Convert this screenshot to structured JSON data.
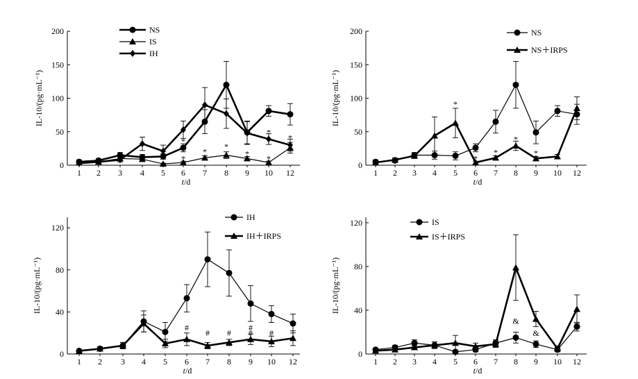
{
  "chart_data": [
    {
      "type": "line",
      "categories": [
        "1",
        "2",
        "3",
        "4",
        "5",
        "6",
        "7",
        "8",
        "9",
        "10",
        "12"
      ],
      "xlabel": "t/d",
      "ylabel": "IL-10/(pg·mL⁻¹)",
      "ylim": [
        0,
        200
      ],
      "yticks": [
        "0",
        "50",
        "100",
        "150",
        "200"
      ],
      "legend_position": "top-left",
      "series": [
        {
          "name": "NS",
          "marker": "circle",
          "line": "thick",
          "values": [
            5,
            7,
            15,
            12,
            13,
            26,
            65,
            120,
            49,
            81,
            76
          ],
          "errors": [
            3,
            3,
            4,
            4,
            4,
            6,
            18,
            35,
            17,
            8,
            16
          ]
        },
        {
          "name": "IS",
          "marker": "triangle",
          "line": "thin",
          "values": [
            4,
            5,
            10,
            9,
            2,
            4,
            11,
            15,
            10,
            4,
            26
          ],
          "errors": [
            2,
            2,
            3,
            3,
            1,
            2,
            3,
            5,
            3,
            2,
            8
          ]
        },
        {
          "name": "IH",
          "marker": "diamond",
          "line": "thick",
          "values": [
            3,
            5,
            8,
            32,
            21,
            53,
            90,
            77,
            48,
            39,
            30
          ],
          "errors": [
            2,
            2,
            3,
            10,
            9,
            13,
            26,
            22,
            17,
            8,
            9
          ]
        }
      ],
      "annotations": [
        {
          "text": "*",
          "x": "6",
          "y": 36
        },
        {
          "text": "*",
          "x": "6",
          "y": 10
        },
        {
          "text": "*",
          "x": "7",
          "y": 20
        },
        {
          "text": "*",
          "x": "8",
          "y": 28
        },
        {
          "text": "*",
          "x": "9",
          "y": 17
        },
        {
          "text": "*",
          "x": "10",
          "y": 49
        },
        {
          "text": "*",
          "x": "10",
          "y": 10
        },
        {
          "text": "*",
          "x": "12",
          "y": 41
        }
      ]
    },
    {
      "type": "line",
      "categories": [
        "1",
        "2",
        "3",
        "4",
        "5",
        "6",
        "7",
        "8",
        "9",
        "10",
        "12"
      ],
      "xlabel": "t/d",
      "ylabel": "IL-10/(pg·mL⁻¹)",
      "ylim": [
        0,
        200
      ],
      "yticks": [
        "0",
        "50",
        "100",
        "150",
        "200"
      ],
      "legend_position": "top-right",
      "series": [
        {
          "name": "NS",
          "marker": "circle",
          "line": "thin",
          "values": [
            5,
            7,
            15,
            15,
            14,
            26,
            65,
            120,
            49,
            81,
            76
          ],
          "errors": [
            3,
            3,
            4,
            6,
            6,
            6,
            17,
            35,
            17,
            8,
            15
          ]
        },
        {
          "name": "NS＋IRPS",
          "marker": "triangle",
          "line": "thick",
          "values": [
            4,
            8,
            14,
            44,
            63,
            4,
            11,
            29,
            10,
            13,
            85
          ],
          "errors": [
            2,
            3,
            4,
            28,
            22,
            2,
            3,
            7,
            3,
            3,
            17
          ]
        }
      ],
      "annotations": [
        {
          "text": "*",
          "x": "5",
          "y": 91
        },
        {
          "text": "*",
          "x": "6",
          "y": 10
        },
        {
          "text": "*",
          "x": "7",
          "y": 19
        },
        {
          "text": "*",
          "x": "8",
          "y": 39
        },
        {
          "text": "*",
          "x": "9",
          "y": 18
        },
        {
          "text": "*",
          "x": "10",
          "y": 10
        }
      ]
    },
    {
      "type": "line",
      "categories": [
        "1",
        "2",
        "3",
        "4",
        "5",
        "6",
        "7",
        "8",
        "9",
        "10",
        "12"
      ],
      "xlabel": "t/d",
      "ylabel": "IL-10/(pg·mL⁻¹)",
      "ylim": [
        0,
        130
      ],
      "yticks": [
        "0",
        "40",
        "80",
        "120"
      ],
      "legend_position": "top-right",
      "series": [
        {
          "name": "IH",
          "marker": "circle",
          "line": "thin",
          "values": [
            3,
            5,
            8,
            31,
            21,
            53,
            90,
            77,
            48,
            38,
            29
          ],
          "errors": [
            1,
            2,
            3,
            10,
            9,
            13,
            26,
            22,
            17,
            8,
            9
          ]
        },
        {
          "name": "IH＋IRPS",
          "marker": "triangle",
          "line": "thick",
          "values": [
            3,
            5,
            8,
            29,
            10,
            14,
            8,
            11,
            14,
            12,
            15
          ],
          "errors": [
            1,
            2,
            3,
            8,
            4,
            6,
            3,
            3,
            5,
            5,
            7
          ]
        }
      ],
      "annotations": [
        {
          "text": "#",
          "x": "6",
          "y": 25
        },
        {
          "text": "#",
          "x": "7",
          "y": 20
        },
        {
          "text": "#",
          "x": "8",
          "y": 20
        },
        {
          "text": "#",
          "x": "9",
          "y": 25
        },
        {
          "text": "#",
          "x": "9",
          "y": 20
        },
        {
          "text": "#",
          "x": "10",
          "y": 20
        }
      ]
    },
    {
      "type": "line",
      "categories": [
        "1",
        "2",
        "3",
        "4",
        "5",
        "6",
        "7",
        "8",
        "9",
        "10",
        "12"
      ],
      "xlabel": "t/d",
      "ylabel": "IL-10/(pg·mL⁻¹)",
      "ylim": [
        0,
        125
      ],
      "yticks": [
        "0",
        "40",
        "80",
        "120"
      ],
      "legend_position": "top-left",
      "series": [
        {
          "name": "IS",
          "marker": "circle",
          "line": "thin",
          "values": [
            4,
            6,
            10,
            8,
            2,
            4,
            10,
            15,
            9,
            4,
            25
          ],
          "errors": [
            1,
            2,
            3,
            3,
            1,
            2,
            3,
            5,
            3,
            2,
            4
          ]
        },
        {
          "name": "IS＋IRPS",
          "marker": "triangle",
          "line": "thick",
          "values": [
            3,
            4,
            6,
            8,
            10,
            7,
            9,
            79,
            32,
            5,
            41
          ],
          "errors": [
            1,
            2,
            2,
            3,
            7,
            3,
            3,
            30,
            7,
            2,
            13
          ]
        }
      ],
      "annotations": [
        {
          "text": "&",
          "x": "8",
          "y": 30
        },
        {
          "text": "&",
          "x": "9",
          "y": 19
        }
      ]
    }
  ]
}
